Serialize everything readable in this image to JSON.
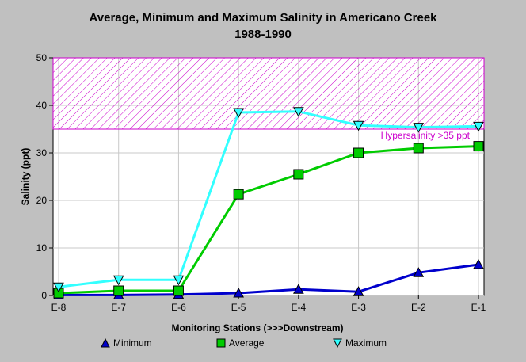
{
  "chart_data": {
    "type": "line",
    "title": "Average, Minimum and Maximum Salinity in Americano Creek",
    "subtitle": "1988-1990",
    "xlabel": "Monitoring Stations (>>>Downstream)",
    "ylabel": "Salinity (ppt)",
    "categories": [
      "E-8",
      "E-7",
      "E-6",
      "E-5",
      "E-4",
      "E-3",
      "E-2",
      "E-1"
    ],
    "ylim": [
      0,
      50
    ],
    "yticks": [
      0,
      10,
      20,
      30,
      40,
      50
    ],
    "grid": true,
    "legend": "bottom",
    "series": [
      {
        "name": "Minimum",
        "values": [
          0.1,
          0.1,
          0.2,
          0.5,
          1.3,
          0.8,
          4.8,
          6.5
        ],
        "color": "#0000cc",
        "marker": "triangle-up"
      },
      {
        "name": "Average",
        "values": [
          0.5,
          1.0,
          1.0,
          21.3,
          25.5,
          30.0,
          31.0,
          31.4
        ],
        "color": "#00cc00",
        "marker": "square"
      },
      {
        "name": "Maximum",
        "values": [
          1.8,
          3.3,
          3.3,
          38.5,
          38.7,
          35.8,
          35.4,
          35.6
        ],
        "color": "#33ffff",
        "marker": "triangle-down"
      }
    ],
    "annotation": {
      "label": "Hypersalinity >35 ppt",
      "y_range": [
        35,
        50
      ],
      "color": "#cc00cc"
    }
  }
}
